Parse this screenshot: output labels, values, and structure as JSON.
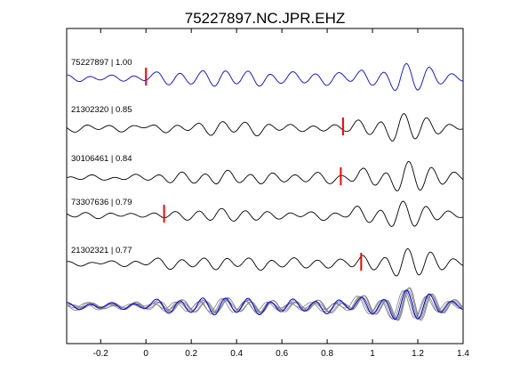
{
  "chart_data": {
    "type": "line",
    "title": "75227897.NC.JPR.EHZ",
    "xlabel": "",
    "ylabel": "",
    "xlim": [
      -0.35,
      1.4
    ],
    "x_ticks": [
      -0.2,
      0,
      0.2,
      0.4,
      0.6,
      0.8,
      1,
      1.2,
      1.4
    ],
    "x_tick_labels": [
      "-0.2",
      "0",
      "0.2",
      "0.4",
      "0.6",
      "0.8",
      "1",
      "1.2",
      "1.4"
    ],
    "grid": false,
    "colors": {
      "reference_trace": "#0000ff",
      "matched_trace": "#000000",
      "overlay_trace": "#808080",
      "pick_marker": "#ff0000",
      "axes": "#000000"
    },
    "traces": [
      {
        "label": "75227897 | 1.00",
        "event_id": "75227897",
        "correlation": 1.0,
        "pick_time": 0.0,
        "reference": true
      },
      {
        "label": "21302320 | 0.85",
        "event_id": "21302320",
        "correlation": 0.85,
        "pick_time": 0.87,
        "reference": false
      },
      {
        "label": "30106461 | 0.84",
        "event_id": "30106461",
        "correlation": 0.84,
        "pick_time": 0.86,
        "reference": false
      },
      {
        "label": "73307636 | 0.79",
        "event_id": "73307636",
        "correlation": 0.79,
        "pick_time": 0.08,
        "reference": false
      },
      {
        "label": "21302321 | 0.77",
        "event_id": "21302321",
        "correlation": 0.77,
        "pick_time": 0.95,
        "reference": false
      }
    ],
    "wave_keypoints": [
      [
        -0.35,
        0.2
      ],
      [
        -0.3,
        -0.3
      ],
      [
        -0.25,
        0.35
      ],
      [
        -0.2,
        -0.25
      ],
      [
        -0.15,
        0.3
      ],
      [
        -0.1,
        -0.35
      ],
      [
        -0.05,
        0.4
      ],
      [
        0.0,
        -0.2
      ],
      [
        0.05,
        0.5
      ],
      [
        0.1,
        -0.6
      ],
      [
        0.15,
        0.55
      ],
      [
        0.2,
        -0.5
      ],
      [
        0.25,
        0.6
      ],
      [
        0.3,
        -0.8
      ],
      [
        0.35,
        0.9
      ],
      [
        0.4,
        -0.6
      ],
      [
        0.45,
        0.7
      ],
      [
        0.5,
        -0.9
      ],
      [
        0.55,
        0.6
      ],
      [
        0.6,
        -0.5
      ],
      [
        0.65,
        0.55
      ],
      [
        0.7,
        -0.45
      ],
      [
        0.75,
        0.5
      ],
      [
        0.8,
        -0.6
      ],
      [
        0.85,
        0.4
      ],
      [
        0.9,
        -0.3
      ],
      [
        0.95,
        0.9
      ],
      [
        1.0,
        -0.7
      ],
      [
        1.05,
        0.6
      ],
      [
        1.1,
        -1.3
      ],
      [
        1.15,
        1.6
      ],
      [
        1.2,
        -1.2
      ],
      [
        1.25,
        1.1
      ],
      [
        1.3,
        -0.6
      ],
      [
        1.35,
        0.5
      ],
      [
        1.4,
        -0.2
      ]
    ]
  }
}
